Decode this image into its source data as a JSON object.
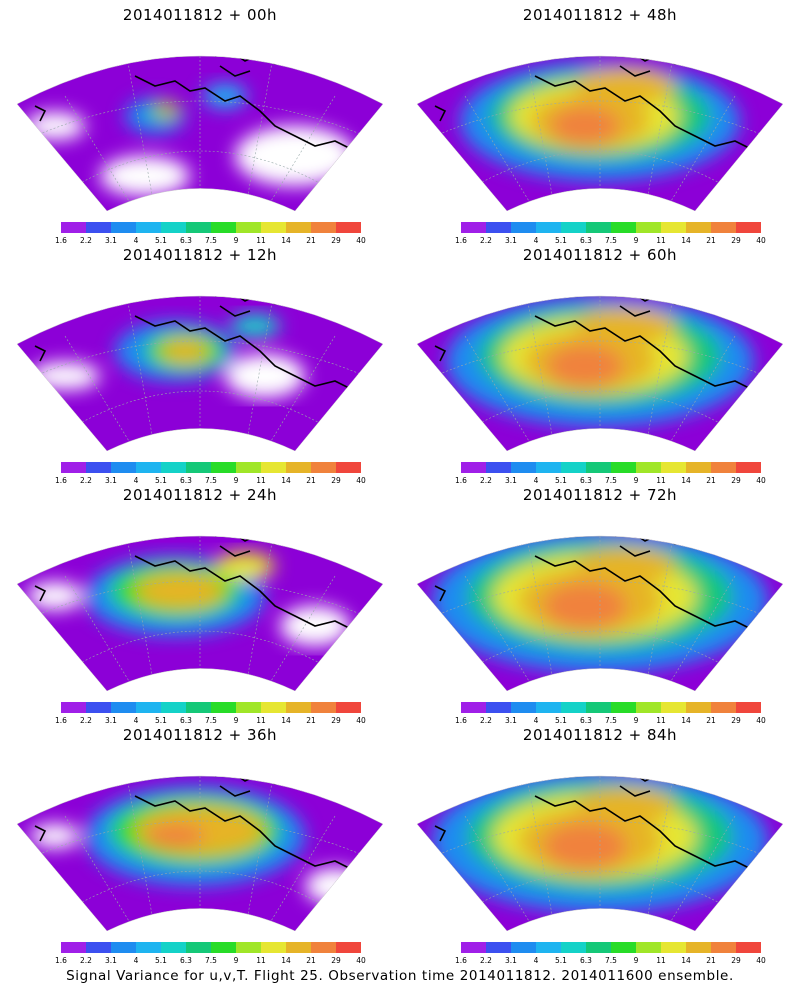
{
  "panels": [
    {
      "title": "2014011812 + 00h",
      "level": 0
    },
    {
      "title": "2014011812 + 48h",
      "level": 4
    },
    {
      "title": "2014011812 + 12h",
      "level": 1
    },
    {
      "title": "2014011812 + 60h",
      "level": 5
    },
    {
      "title": "2014011812 + 24h",
      "level": 2
    },
    {
      "title": "2014011812 + 72h",
      "level": 6
    },
    {
      "title": "2014011812 + 36h",
      "level": 3
    },
    {
      "title": "2014011812 + 84h",
      "level": 6
    }
  ],
  "colorbar": {
    "labels": [
      "1.6",
      "2.2",
      "3.1",
      "4",
      "5.1",
      "6.3",
      "7.5",
      "9",
      "11",
      "14",
      "21",
      "29",
      "40"
    ],
    "colors": [
      "#8c00d7",
      "#a01fe8",
      "#3c50f0",
      "#1e8cf0",
      "#1eb4f0",
      "#14d2c8",
      "#14c878",
      "#28dc28",
      "#a0e628",
      "#e6e632",
      "#e6b428",
      "#f0823c",
      "#f0463c",
      "#f01e82"
    ]
  },
  "footer": "Signal Variance for u,v,T. Flight 25. Observation time 2014011812. 2014011600 ensemble."
}
